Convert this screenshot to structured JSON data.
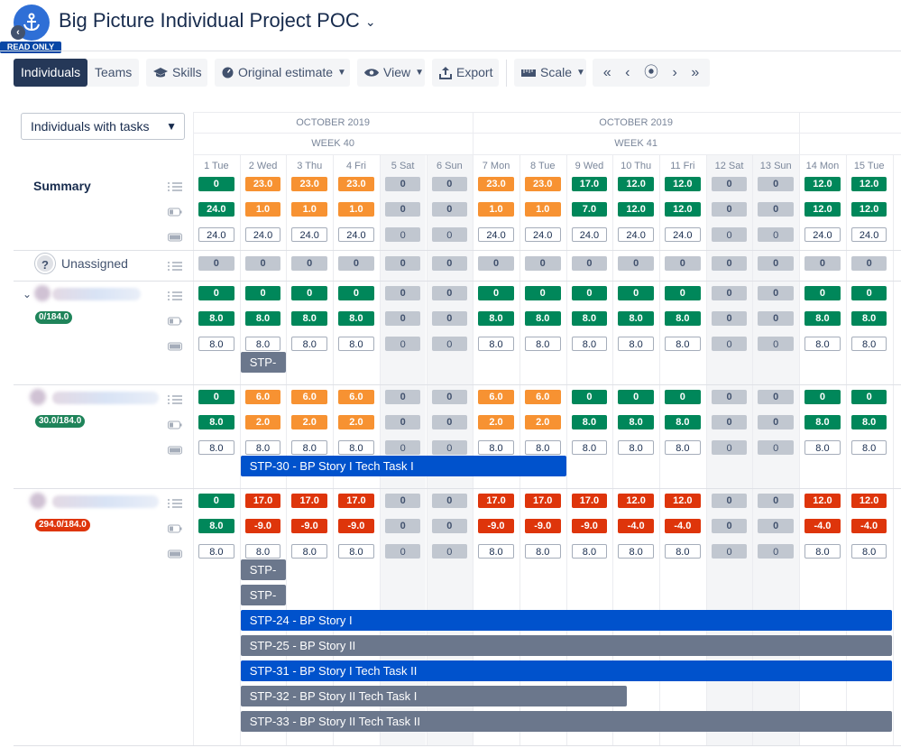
{
  "header": {
    "title": "Big Picture Individual Project POC",
    "read_only": "READ ONLY"
  },
  "toolbar": {
    "individuals": "Individuals",
    "teams": "Teams",
    "skills": "Skills",
    "estimate": "Original estimate",
    "view": "View",
    "export": "Export",
    "scale": "Scale"
  },
  "filter": {
    "value": "Individuals with tasks"
  },
  "timeline": {
    "months": [
      "OCTOBER 2019",
      "OCTOBER 2019"
    ],
    "weeks": [
      "WEEK 40",
      "WEEK 41"
    ],
    "days": [
      "1 Tue",
      "2 Wed",
      "3 Thu",
      "4 Fri",
      "5 Sat",
      "6 Sun",
      "7 Mon",
      "8 Tue",
      "9 Wed",
      "10 Thu",
      "11 Fri",
      "12 Sat",
      "13 Sun",
      "14 Mon",
      "15 Tue"
    ],
    "weekend": [
      false,
      false,
      false,
      false,
      true,
      true,
      false,
      false,
      false,
      false,
      false,
      true,
      true,
      false,
      false
    ]
  },
  "rows": [
    {
      "label": "Summary",
      "rows": [
        {
          "icon": "task-list-icon",
          "cells": [
            [
              "0",
              "g"
            ],
            [
              "23.0",
              "o"
            ],
            [
              "23.0",
              "o"
            ],
            [
              "23.0",
              "o"
            ],
            [
              "0",
              "z"
            ],
            [
              "0",
              "z"
            ],
            [
              "23.0",
              "o"
            ],
            [
              "23.0",
              "o"
            ],
            [
              "17.0",
              "g"
            ],
            [
              "12.0",
              "g"
            ],
            [
              "12.0",
              "g"
            ],
            [
              "0",
              "z"
            ],
            [
              "0",
              "z"
            ],
            [
              "12.0",
              "g"
            ],
            [
              "12.0",
              "g"
            ]
          ]
        },
        {
          "icon": "battery-icon",
          "cells": [
            [
              "24.0",
              "g"
            ],
            [
              "1.0",
              "o"
            ],
            [
              "1.0",
              "o"
            ],
            [
              "1.0",
              "o"
            ],
            [
              "0",
              "z"
            ],
            [
              "0",
              "z"
            ],
            [
              "1.0",
              "o"
            ],
            [
              "1.0",
              "o"
            ],
            [
              "7.0",
              "g"
            ],
            [
              "12.0",
              "g"
            ],
            [
              "12.0",
              "g"
            ],
            [
              "0",
              "z"
            ],
            [
              "0",
              "z"
            ],
            [
              "12.0",
              "g"
            ],
            [
              "12.0",
              "g"
            ]
          ]
        },
        {
          "icon": "capacity-icon",
          "cells": [
            [
              "24.0",
              "w"
            ],
            [
              "24.0",
              "w"
            ],
            [
              "24.0",
              "w"
            ],
            [
              "24.0",
              "w"
            ],
            [
              "0",
              "wz"
            ],
            [
              "0",
              "wz"
            ],
            [
              "24.0",
              "w"
            ],
            [
              "24.0",
              "w"
            ],
            [
              "24.0",
              "w"
            ],
            [
              "24.0",
              "w"
            ],
            [
              "24.0",
              "w"
            ],
            [
              "0",
              "wz"
            ],
            [
              "0",
              "wz"
            ],
            [
              "24.0",
              "w"
            ],
            [
              "24.0",
              "w"
            ]
          ]
        }
      ]
    },
    {
      "label": "Unassigned",
      "rows": [
        {
          "icon": "task-list-icon",
          "cells": [
            [
              "0",
              "z"
            ],
            [
              "0",
              "z"
            ],
            [
              "0",
              "z"
            ],
            [
              "0",
              "z"
            ],
            [
              "0",
              "z"
            ],
            [
              "0",
              "z"
            ],
            [
              "0",
              "z"
            ],
            [
              "0",
              "z"
            ],
            [
              "0",
              "z"
            ],
            [
              "0",
              "z"
            ],
            [
              "0",
              "z"
            ],
            [
              "0",
              "z"
            ],
            [
              "0",
              "z"
            ],
            [
              "0",
              "z"
            ],
            [
              "0",
              "z"
            ]
          ]
        }
      ]
    },
    {
      "badge": "0/184.0",
      "badge_color": "#1f845a",
      "rows": [
        {
          "icon": "task-list-icon",
          "cells": [
            [
              "0",
              "g"
            ],
            [
              "0",
              "g"
            ],
            [
              "0",
              "g"
            ],
            [
              "0",
              "g"
            ],
            [
              "0",
              "z"
            ],
            [
              "0",
              "z"
            ],
            [
              "0",
              "g"
            ],
            [
              "0",
              "g"
            ],
            [
              "0",
              "g"
            ],
            [
              "0",
              "g"
            ],
            [
              "0",
              "g"
            ],
            [
              "0",
              "z"
            ],
            [
              "0",
              "z"
            ],
            [
              "0",
              "g"
            ],
            [
              "0",
              "g"
            ]
          ]
        },
        {
          "icon": "battery-icon",
          "cells": [
            [
              "8.0",
              "g"
            ],
            [
              "8.0",
              "g"
            ],
            [
              "8.0",
              "g"
            ],
            [
              "8.0",
              "g"
            ],
            [
              "0",
              "z"
            ],
            [
              "0",
              "z"
            ],
            [
              "8.0",
              "g"
            ],
            [
              "8.0",
              "g"
            ],
            [
              "8.0",
              "g"
            ],
            [
              "8.0",
              "g"
            ],
            [
              "8.0",
              "g"
            ],
            [
              "0",
              "z"
            ],
            [
              "0",
              "z"
            ],
            [
              "8.0",
              "g"
            ],
            [
              "8.0",
              "g"
            ]
          ]
        },
        {
          "icon": "capacity-icon",
          "cells": [
            [
              "8.0",
              "w"
            ],
            [
              "8.0",
              "w"
            ],
            [
              "8.0",
              "w"
            ],
            [
              "8.0",
              "w"
            ],
            [
              "0",
              "wz"
            ],
            [
              "0",
              "wz"
            ],
            [
              "8.0",
              "w"
            ],
            [
              "8.0",
              "w"
            ],
            [
              "8.0",
              "w"
            ],
            [
              "8.0",
              "w"
            ],
            [
              "8.0",
              "w"
            ],
            [
              "0",
              "wz"
            ],
            [
              "0",
              "wz"
            ],
            [
              "8.0",
              "w"
            ],
            [
              "8.0",
              "w"
            ]
          ]
        }
      ],
      "bars": [
        {
          "label": "STP-",
          "color": "#6b778c",
          "start": 1,
          "end": 2
        }
      ]
    },
    {
      "badge": "30.0/184.0",
      "badge_color": "#1f845a",
      "rows": [
        {
          "icon": "task-list-icon",
          "cells": [
            [
              "0",
              "g"
            ],
            [
              "6.0",
              "o"
            ],
            [
              "6.0",
              "o"
            ],
            [
              "6.0",
              "o"
            ],
            [
              "0",
              "z"
            ],
            [
              "0",
              "z"
            ],
            [
              "6.0",
              "o"
            ],
            [
              "6.0",
              "o"
            ],
            [
              "0",
              "g"
            ],
            [
              "0",
              "g"
            ],
            [
              "0",
              "g"
            ],
            [
              "0",
              "z"
            ],
            [
              "0",
              "z"
            ],
            [
              "0",
              "g"
            ],
            [
              "0",
              "g"
            ]
          ]
        },
        {
          "icon": "battery-icon",
          "cells": [
            [
              "8.0",
              "g"
            ],
            [
              "2.0",
              "o"
            ],
            [
              "2.0",
              "o"
            ],
            [
              "2.0",
              "o"
            ],
            [
              "0",
              "z"
            ],
            [
              "0",
              "z"
            ],
            [
              "2.0",
              "o"
            ],
            [
              "2.0",
              "o"
            ],
            [
              "8.0",
              "g"
            ],
            [
              "8.0",
              "g"
            ],
            [
              "8.0",
              "g"
            ],
            [
              "0",
              "z"
            ],
            [
              "0",
              "z"
            ],
            [
              "8.0",
              "g"
            ],
            [
              "8.0",
              "g"
            ]
          ]
        },
        {
          "icon": "capacity-icon",
          "cells": [
            [
              "8.0",
              "w"
            ],
            [
              "8.0",
              "w"
            ],
            [
              "8.0",
              "w"
            ],
            [
              "8.0",
              "w"
            ],
            [
              "0",
              "wz"
            ],
            [
              "0",
              "wz"
            ],
            [
              "8.0",
              "w"
            ],
            [
              "8.0",
              "w"
            ],
            [
              "8.0",
              "w"
            ],
            [
              "8.0",
              "w"
            ],
            [
              "8.0",
              "w"
            ],
            [
              "0",
              "wz"
            ],
            [
              "0",
              "wz"
            ],
            [
              "8.0",
              "w"
            ],
            [
              "8.0",
              "w"
            ]
          ]
        }
      ],
      "bars": [
        {
          "label": "STP-30 - BP Story I Tech Task I",
          "color": "#0052cc",
          "start": 1,
          "end": 8
        }
      ]
    },
    {
      "badge": "294.0/184.0",
      "badge_color": "#de350b",
      "rows": [
        {
          "icon": "task-list-icon",
          "cells": [
            [
              "0",
              "g"
            ],
            [
              "17.0",
              "r"
            ],
            [
              "17.0",
              "r"
            ],
            [
              "17.0",
              "r"
            ],
            [
              "0",
              "z"
            ],
            [
              "0",
              "z"
            ],
            [
              "17.0",
              "r"
            ],
            [
              "17.0",
              "r"
            ],
            [
              "17.0",
              "r"
            ],
            [
              "12.0",
              "r"
            ],
            [
              "12.0",
              "r"
            ],
            [
              "0",
              "z"
            ],
            [
              "0",
              "z"
            ],
            [
              "12.0",
              "r"
            ],
            [
              "12.0",
              "r"
            ]
          ]
        },
        {
          "icon": "battery-icon",
          "cells": [
            [
              "8.0",
              "g"
            ],
            [
              "-9.0",
              "r"
            ],
            [
              "-9.0",
              "r"
            ],
            [
              "-9.0",
              "r"
            ],
            [
              "0",
              "z"
            ],
            [
              "0",
              "z"
            ],
            [
              "-9.0",
              "r"
            ],
            [
              "-9.0",
              "r"
            ],
            [
              "-9.0",
              "r"
            ],
            [
              "-4.0",
              "r"
            ],
            [
              "-4.0",
              "r"
            ],
            [
              "0",
              "z"
            ],
            [
              "0",
              "z"
            ],
            [
              "-4.0",
              "r"
            ],
            [
              "-4.0",
              "r"
            ]
          ]
        },
        {
          "icon": "capacity-icon",
          "cells": [
            [
              "8.0",
              "w"
            ],
            [
              "8.0",
              "w"
            ],
            [
              "8.0",
              "w"
            ],
            [
              "8.0",
              "w"
            ],
            [
              "0",
              "wz"
            ],
            [
              "0",
              "wz"
            ],
            [
              "8.0",
              "w"
            ],
            [
              "8.0",
              "w"
            ],
            [
              "8.0",
              "w"
            ],
            [
              "8.0",
              "w"
            ],
            [
              "8.0",
              "w"
            ],
            [
              "0",
              "wz"
            ],
            [
              "0",
              "wz"
            ],
            [
              "8.0",
              "w"
            ],
            [
              "8.0",
              "w"
            ]
          ]
        }
      ],
      "bars": [
        {
          "label": "STP-",
          "color": "#6b778c",
          "start": 1,
          "end": 2
        },
        {
          "label": "STP-",
          "color": "#6b778c",
          "start": 1,
          "end": 2
        },
        {
          "label": "STP-24 - BP Story I",
          "color": "#0052cc",
          "start": 1,
          "end": 15
        },
        {
          "label": "STP-25 - BP Story II",
          "color": "#6b778c",
          "start": 1,
          "end": 15
        },
        {
          "label": "STP-31 - BP Story I Tech Task II",
          "color": "#0052cc",
          "start": 1,
          "end": 15
        },
        {
          "label": "STP-32 - BP Story II Tech Task I",
          "color": "#6b778c",
          "start": 1,
          "end": 9.3
        },
        {
          "label": "STP-33 - BP Story II Tech Task II",
          "color": "#6b778c",
          "start": 1,
          "end": 15
        }
      ]
    }
  ],
  "colors": {
    "g": "#00875a",
    "o": "#f79232",
    "r": "#de350b",
    "z": "#c1c7d0"
  }
}
